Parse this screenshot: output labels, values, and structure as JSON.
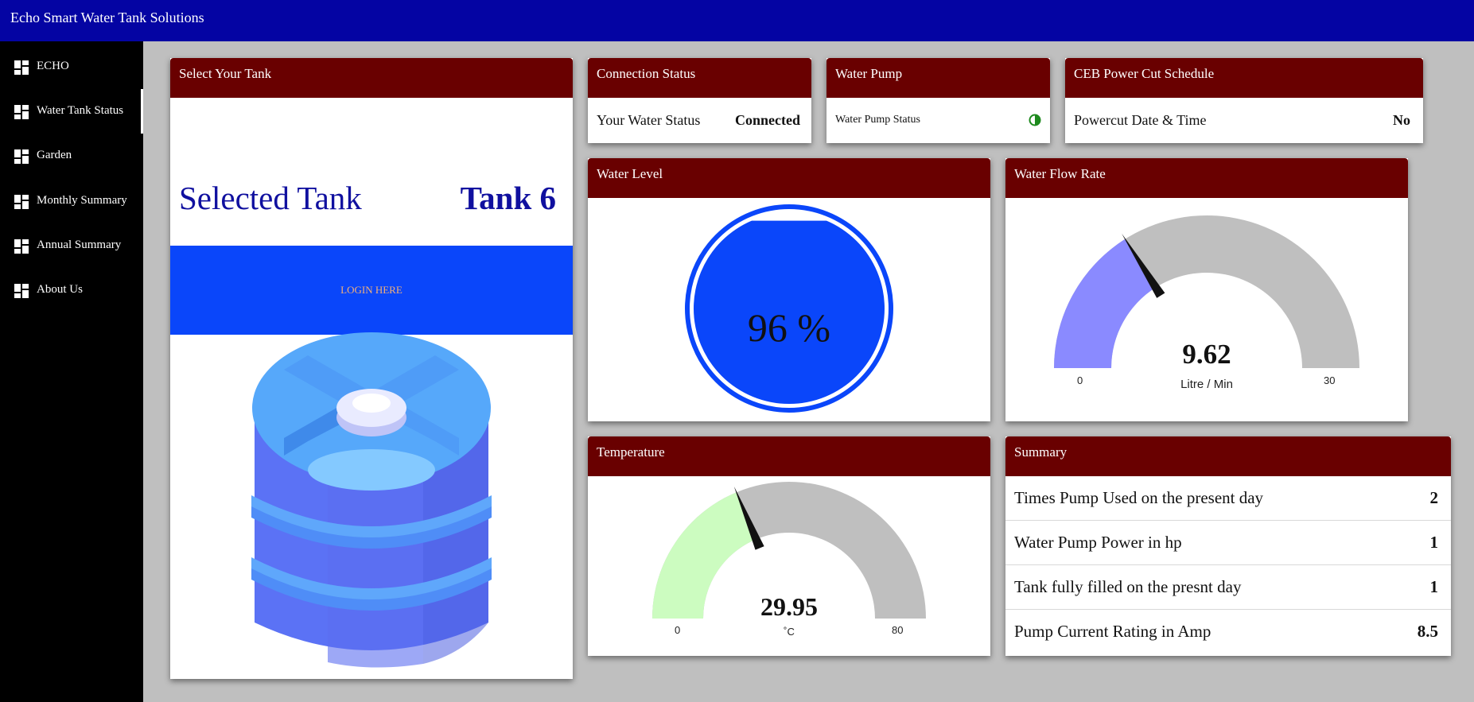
{
  "app": {
    "title": "Echo Smart Water Tank Solutions"
  },
  "sidebar": {
    "items": [
      {
        "label": "ECHO"
      },
      {
        "label": "Water Tank Status"
      },
      {
        "label": "Garden"
      },
      {
        "label": "Monthly Summary"
      },
      {
        "label": "Annual Summary"
      },
      {
        "label": "About Us"
      }
    ]
  },
  "select_tank": {
    "header": "Select Your Tank",
    "label": "Selected Tank",
    "value": "Tank 6",
    "login_label": "LOGIN HERE",
    "login_band_color": "#0a46fa"
  },
  "connection": {
    "header": "Connection Status",
    "label": "Your Water Status",
    "value": "Connected"
  },
  "pump": {
    "header": "Water Pump",
    "label": "Water Pump Status",
    "icon": "half-circle-status-icon",
    "icon_color": "#1e8a1e"
  },
  "power_cut": {
    "header": "CEB Power Cut Schedule",
    "label": "Powercut Date & Time",
    "value": "No"
  },
  "water_level": {
    "header": "Water Level",
    "value_text": "96 %",
    "level_fraction": 0.96,
    "color": "#0a46fa"
  },
  "flow_rate": {
    "header": "Water Flow Rate",
    "value_text": "9.62",
    "value": 9.62,
    "min": 0,
    "max": 30,
    "min_label": "0",
    "max_label": "30",
    "units": "Litre / Min",
    "fill_color": "#8a8aff",
    "track_color": "#bfbfbf"
  },
  "temperature": {
    "header": "Temperature",
    "value_text": "29.95",
    "value": 29.95,
    "min": 0,
    "max": 80,
    "min_label": "0",
    "max_label": "80",
    "units": "˚C",
    "fill_color": "#ccfcc0",
    "track_color": "#bfbfbf"
  },
  "summary": {
    "header": "Summary",
    "rows": [
      {
        "label": "Times Pump Used on the present day",
        "value": "2"
      },
      {
        "label": "Water Pump Power in hp",
        "value": "1"
      },
      {
        "label": "Tank fully filled on the presnt day",
        "value": "1"
      },
      {
        "label": "Pump Current Rating in Amp",
        "value": "8.5"
      }
    ]
  },
  "colors": {
    "topbar": "#0404a3",
    "sidebar": "#000000",
    "card_header": "#690000",
    "background": "#bfbfbf"
  }
}
